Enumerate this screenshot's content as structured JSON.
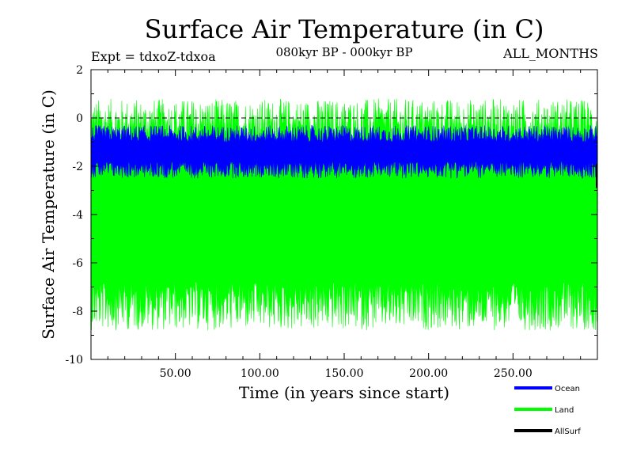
{
  "chart_data": {
    "type": "line",
    "title": "Surface Air Temperature (in C)",
    "subtitle": "080kyr BP - 000kyr BP",
    "left_label": "Expt = tdxoZ-tdxoa",
    "right_label": "ALL_MONTHS",
    "xlabel": "Time (in years since start)",
    "ylabel": "Surface Air Temperature (in C)",
    "xlim": [
      0,
      300
    ],
    "ylim": [
      -10,
      2
    ],
    "xticks": [
      50,
      100,
      150,
      200,
      250
    ],
    "xtick_labels": [
      "50.00",
      "100.00",
      "150.00",
      "200.00",
      "250.00"
    ],
    "yticks": [
      2,
      0,
      -2,
      -4,
      -6,
      -8,
      -10
    ],
    "ytick_labels": [
      "2",
      "0",
      "-2",
      "-4",
      "-6",
      "-8",
      "-10"
    ],
    "reference_line": {
      "y": 0,
      "style": "dashed"
    },
    "grid": false,
    "legend_position": "bottom-right, outside plot",
    "series": [
      {
        "name": "Ocean",
        "color": "#0000ff",
        "min_range": [
          -2.5,
          -1.8
        ],
        "max_range": [
          -1.0,
          -0.3
        ]
      },
      {
        "name": "Land",
        "color": "#00ff00",
        "min_range": [
          -8.8,
          -6.8
        ],
        "max_range": [
          -1.0,
          0.8
        ]
      },
      {
        "name": "AllSurf",
        "color": "#000000",
        "min_range": [
          -2.9,
          -2.9
        ],
        "max_range": [
          -2.9,
          -2.9
        ]
      }
    ]
  }
}
